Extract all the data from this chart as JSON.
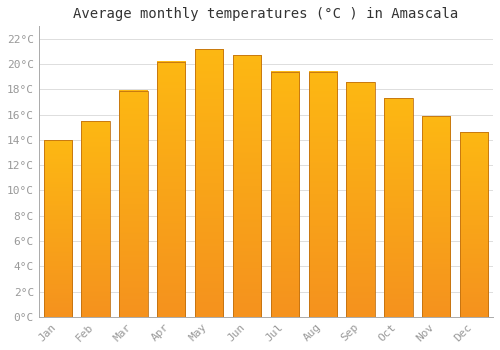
{
  "title": "Average monthly temperatures (°C ) in Amascala",
  "months": [
    "Jan",
    "Feb",
    "Mar",
    "Apr",
    "May",
    "Jun",
    "Jul",
    "Aug",
    "Sep",
    "Oct",
    "Nov",
    "Dec"
  ],
  "values": [
    14.0,
    15.5,
    17.9,
    20.2,
    21.2,
    20.7,
    19.4,
    19.4,
    18.6,
    17.3,
    15.9,
    14.6
  ],
  "bar_color_top": "#FDB813",
  "bar_color_bottom": "#F5921E",
  "bar_edge_color": "#C07010",
  "background_color": "#FFFFFF",
  "grid_color": "#DDDDDD",
  "ytick_labels": [
    "0°C",
    "2°C",
    "4°C",
    "6°C",
    "8°C",
    "10°C",
    "12°C",
    "14°C",
    "16°C",
    "18°C",
    "20°C",
    "22°C"
  ],
  "ytick_values": [
    0,
    2,
    4,
    6,
    8,
    10,
    12,
    14,
    16,
    18,
    20,
    22
  ],
  "ylim": [
    0,
    23
  ],
  "title_fontsize": 10,
  "tick_fontsize": 8,
  "tick_color": "#999999",
  "spine_color": "#AAAAAA",
  "title_color": "#333333"
}
